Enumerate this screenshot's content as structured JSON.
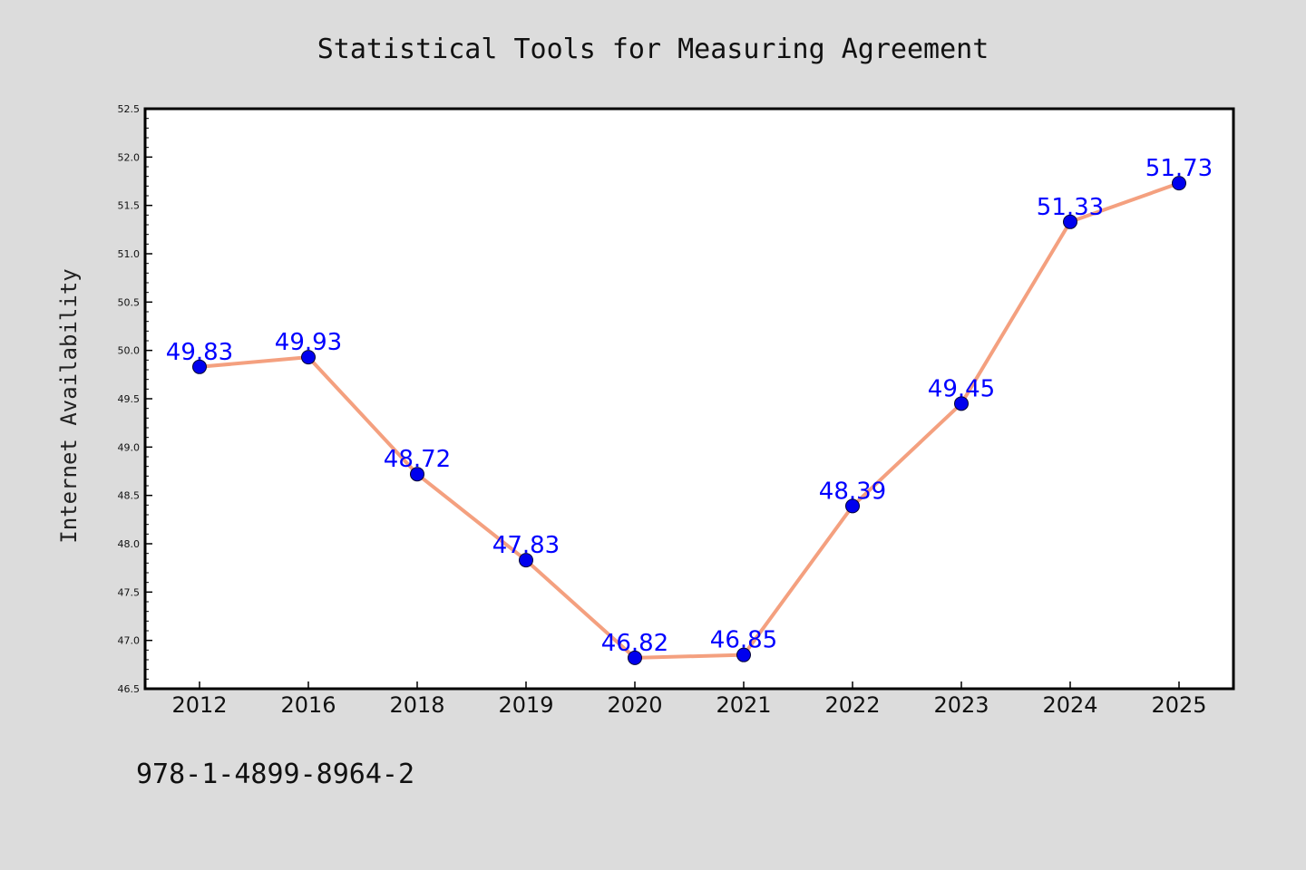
{
  "chart_data": {
    "type": "line",
    "title": "Statistical Tools for Measuring Agreement",
    "xlabel": "",
    "ylabel": "Internet Availability",
    "categories": [
      "2012",
      "2016",
      "2018",
      "2019",
      "2020",
      "2021",
      "2022",
      "2023",
      "2024",
      "2025"
    ],
    "series": [
      {
        "values": [
          49.83,
          49.93,
          48.72,
          47.83,
          46.82,
          46.85,
          48.39,
          49.45,
          51.33,
          51.73
        ],
        "line_color": "#f4a07f",
        "marker_color": "#0000ee"
      }
    ],
    "data_labels": [
      "49.83",
      "49.93",
      "48.72",
      "47.83",
      "46.82",
      "46.85",
      "48.39",
      "49.45",
      "51.33",
      "51.73"
    ],
    "ylim": [
      46.5,
      52.5
    ],
    "yticks": [
      "46.5",
      "47.0",
      "47.5",
      "48.0",
      "48.5",
      "49.0",
      "49.5",
      "50.0",
      "50.5",
      "51.0",
      "51.5",
      "52.0",
      "52.5"
    ],
    "grid": false,
    "legend": "none"
  },
  "footer": {
    "isbn": "978-1-4899-8964-2"
  },
  "colors": {
    "background": "#dcdcdc",
    "plot_background": "#ffffff",
    "label_color": "#0000ff"
  }
}
